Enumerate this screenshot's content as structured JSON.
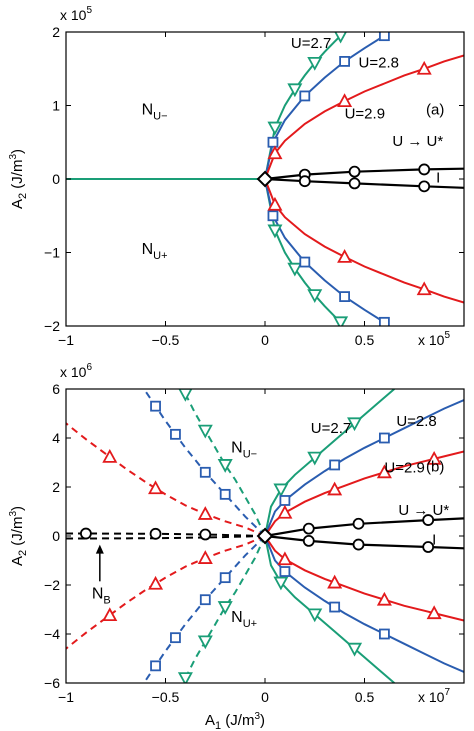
{
  "chart_data": [
    {
      "type": "line",
      "panel_label": "(a)",
      "x_multiplier_label": "x 10",
      "x_multiplier_exp": "5",
      "y_multiplier_label": "x 10",
      "y_multiplier_exp": "5",
      "xlim": [
        -1,
        1
      ],
      "ylim": [
        -2,
        2
      ],
      "xticks": [
        -1,
        -0.5,
        0,
        0.5
      ],
      "xtick_labels": [
        "−1",
        "−0.5",
        "0",
        "0.5"
      ],
      "yticks": [
        -2,
        -1,
        0,
        1,
        2
      ],
      "ytick_labels": [
        "−2",
        "−1",
        "0",
        "1",
        "2"
      ],
      "ylabel": "A",
      "ylabel_sub": "2",
      "ylabel_unit": " (J/m",
      "ylabel_unit_sup": "3",
      "ylabel_close": ")",
      "colors": {
        "green": "#1a9e77",
        "blue": "#2a5db0",
        "red": "#e31a1c",
        "black": "#000000"
      },
      "region_labels": [
        {
          "text": "N",
          "sub": "U−",
          "x": -0.62,
          "y": 0.88
        },
        {
          "text": "N",
          "sub": "U+",
          "x": -0.62,
          "y": -1.02
        }
      ],
      "series_labels": [
        {
          "text": "U=2.7",
          "x": 0.13,
          "y": 1.78
        },
        {
          "text": "U=2.8",
          "x": 0.47,
          "y": 1.52
        },
        {
          "text": "U=2.9",
          "x": 0.4,
          "y": 0.82
        },
        {
          "text": "U → U*",
          "x": 0.64,
          "y": 0.45
        },
        {
          "text": "I",
          "x": 0.86,
          "y": -0.05
        }
      ],
      "series": [
        {
          "color": "green",
          "marker": "tri-down",
          "dashed": false,
          "x": [
            0,
            0.05,
            0.1,
            0.15,
            0.2,
            0.25,
            0.3,
            0.35,
            0.38
          ],
          "y": [
            0,
            0.7,
            1.0,
            1.22,
            1.41,
            1.58,
            1.73,
            1.87,
            1.95
          ],
          "marker_x": [
            0.05,
            0.15,
            0.25,
            0.38
          ]
        },
        {
          "color": "green",
          "marker": "tri-down",
          "dashed": false,
          "x": [
            0,
            0.05,
            0.1,
            0.15,
            0.2,
            0.25,
            0.3,
            0.35,
            0.38
          ],
          "y": [
            0,
            -0.7,
            -1.0,
            -1.22,
            -1.41,
            -1.58,
            -1.73,
            -1.87,
            -1.95
          ],
          "marker_x": [
            0.05,
            0.15,
            0.25,
            0.38
          ]
        },
        {
          "color": "blue",
          "marker": "square",
          "dashed": false,
          "x": [
            0,
            0.04,
            0.1,
            0.2,
            0.3,
            0.4,
            0.5,
            0.6
          ],
          "y": [
            0,
            0.5,
            0.8,
            1.13,
            1.38,
            1.6,
            1.78,
            1.95
          ],
          "marker_x": [
            0.04,
            0.2,
            0.4,
            0.6
          ]
        },
        {
          "color": "blue",
          "marker": "square",
          "dashed": false,
          "x": [
            0,
            0.04,
            0.1,
            0.2,
            0.3,
            0.4,
            0.5,
            0.6
          ],
          "y": [
            0,
            -0.5,
            -0.8,
            -1.13,
            -1.38,
            -1.6,
            -1.78,
            -1.95
          ],
          "marker_x": [
            0.04,
            0.2,
            0.4,
            0.6
          ]
        },
        {
          "color": "red",
          "marker": "tri-up",
          "dashed": false,
          "x": [
            0,
            0.05,
            0.1,
            0.2,
            0.3,
            0.4,
            0.5,
            0.6,
            0.7,
            0.8,
            0.9,
            1.0
          ],
          "y": [
            0,
            0.35,
            0.52,
            0.75,
            0.92,
            1.06,
            1.19,
            1.3,
            1.41,
            1.5,
            1.6,
            1.68
          ],
          "marker_x": [
            0.05,
            0.4,
            0.8
          ]
        },
        {
          "color": "red",
          "marker": "tri-up",
          "dashed": false,
          "x": [
            0,
            0.05,
            0.1,
            0.2,
            0.3,
            0.4,
            0.5,
            0.6,
            0.7,
            0.8,
            0.9,
            1.0
          ],
          "y": [
            0,
            -0.35,
            -0.52,
            -0.75,
            -0.92,
            -1.06,
            -1.19,
            -1.3,
            -1.41,
            -1.5,
            -1.6,
            -1.68
          ],
          "marker_x": [
            0.05,
            0.4,
            0.8
          ]
        },
        {
          "color": "black",
          "marker": "circle",
          "dashed": false,
          "x": [
            0,
            0.2,
            0.45,
            0.8,
            1.0
          ],
          "y": [
            0,
            0.06,
            0.1,
            0.13,
            0.14
          ],
          "marker_x": [
            0.2,
            0.45,
            0.8
          ]
        },
        {
          "color": "black",
          "marker": "circle",
          "dashed": false,
          "x": [
            0,
            0.2,
            0.45,
            0.8,
            1.0
          ],
          "y": [
            0,
            -0.03,
            -0.06,
            -0.1,
            -0.12
          ],
          "marker_x": [
            0.2,
            0.45,
            0.8
          ]
        },
        {
          "color": "green",
          "marker": "none",
          "dashed": false,
          "x": [
            -1,
            0
          ],
          "y": [
            0,
            0
          ],
          "marker_x": []
        }
      ],
      "origin_marker": "diamond"
    },
    {
      "type": "line",
      "panel_label": "(b)",
      "x_multiplier_label": "x 10",
      "x_multiplier_exp": "7",
      "y_multiplier_label": "x 10",
      "y_multiplier_exp": "6",
      "xlim": [
        -1,
        1
      ],
      "ylim": [
        -6,
        6
      ],
      "xticks": [
        -1,
        -0.5,
        0,
        0.5
      ],
      "xtick_labels": [
        "−1",
        "−0.5",
        "0",
        "0.5"
      ],
      "yticks": [
        -6,
        -4,
        -2,
        0,
        2,
        4,
        6
      ],
      "ytick_labels": [
        "−6",
        "−4",
        "−2",
        "0",
        "2",
        "4",
        "6"
      ],
      "xlabel": "A",
      "xlabel_sub": "1",
      "xlabel_unit": " (J/m",
      "xlabel_unit_sup": "3",
      "xlabel_close": ")",
      "ylabel": "A",
      "ylabel_sub": "2",
      "ylabel_unit": " (J/m",
      "ylabel_unit_sup": "3",
      "ylabel_close": ")",
      "colors": {
        "green": "#1a9e77",
        "blue": "#2a5db0",
        "red": "#e31a1c",
        "black": "#000000"
      },
      "region_labels": [
        {
          "text": "N",
          "sub": "U−",
          "x": -0.17,
          "y": 3.4
        },
        {
          "text": "N",
          "sub": "U+",
          "x": -0.17,
          "y": -3.5
        }
      ],
      "nb_label": {
        "text": "N",
        "sub": "B",
        "x": -0.87,
        "y": -2.55,
        "arrow_from": -1.85,
        "arrow_to": -0.35,
        "arrow_x": -0.83
      },
      "series_labels": [
        {
          "text": "U=2.7",
          "x": 0.23,
          "y": 4.2
        },
        {
          "text": "U=2.8",
          "x": 0.66,
          "y": 4.5
        },
        {
          "text": "U=2.9",
          "x": 0.6,
          "y": 2.6
        },
        {
          "text": "U → U*",
          "x": 0.67,
          "y": 0.85
        },
        {
          "text": "I",
          "x": 0.84,
          "y": -0.35
        }
      ],
      "series": [
        {
          "color": "green",
          "marker": "tri-down",
          "dashed": false,
          "x": [
            0,
            0.03,
            0.08,
            0.15,
            0.25,
            0.35,
            0.45,
            0.55,
            0.65
          ],
          "y": [
            0,
            1.2,
            1.9,
            2.5,
            3.2,
            3.9,
            4.6,
            5.3,
            6.0
          ],
          "marker_x": [
            0.08,
            0.25,
            0.45
          ]
        },
        {
          "color": "green",
          "marker": "tri-down",
          "dashed": false,
          "x": [
            0,
            0.03,
            0.08,
            0.15,
            0.25,
            0.35,
            0.45,
            0.55,
            0.65
          ],
          "y": [
            0,
            -1.2,
            -1.9,
            -2.5,
            -3.2,
            -3.9,
            -4.6,
            -5.3,
            -6.0
          ],
          "marker_x": [
            0.08,
            0.25,
            0.45
          ]
        },
        {
          "color": "blue",
          "marker": "square",
          "dashed": false,
          "x": [
            0,
            0.05,
            0.1,
            0.2,
            0.3,
            0.4,
            0.5,
            0.6,
            0.7,
            0.8,
            0.9,
            1.0
          ],
          "y": [
            0,
            1.0,
            1.45,
            2.1,
            2.65,
            3.15,
            3.6,
            4.0,
            4.4,
            4.8,
            5.2,
            5.55
          ],
          "marker_x": [
            0.1,
            0.35,
            0.6
          ]
        },
        {
          "color": "blue",
          "marker": "square",
          "dashed": false,
          "x": [
            0,
            0.05,
            0.1,
            0.2,
            0.3,
            0.4,
            0.5,
            0.6,
            0.7,
            0.8,
            0.9,
            1.0
          ],
          "y": [
            0,
            -1.0,
            -1.45,
            -2.1,
            -2.65,
            -3.15,
            -3.6,
            -4.0,
            -4.4,
            -4.8,
            -5.2,
            -5.55
          ],
          "marker_x": [
            0.1,
            0.35,
            0.6
          ]
        },
        {
          "color": "red",
          "marker": "tri-up",
          "dashed": false,
          "x": [
            0,
            0.05,
            0.1,
            0.2,
            0.3,
            0.4,
            0.5,
            0.6,
            0.7,
            0.8,
            0.9,
            1.0
          ],
          "y": [
            0,
            0.6,
            0.95,
            1.4,
            1.75,
            2.05,
            2.35,
            2.6,
            2.85,
            3.05,
            3.25,
            3.45
          ],
          "marker_x": [
            0.1,
            0.35,
            0.6,
            0.85
          ]
        },
        {
          "color": "red",
          "marker": "tri-up",
          "dashed": false,
          "x": [
            0,
            0.05,
            0.1,
            0.2,
            0.3,
            0.4,
            0.5,
            0.6,
            0.7,
            0.8,
            0.9,
            1.0
          ],
          "y": [
            0,
            -0.6,
            -0.95,
            -1.4,
            -1.75,
            -2.05,
            -2.35,
            -2.6,
            -2.85,
            -3.05,
            -3.25,
            -3.45
          ],
          "marker_x": [
            0.1,
            0.35,
            0.6,
            0.85
          ]
        },
        {
          "color": "black",
          "marker": "circle",
          "dashed": false,
          "x": [
            0,
            0.22,
            0.47,
            0.82,
            1.0
          ],
          "y": [
            0,
            0.3,
            0.5,
            0.65,
            0.72
          ],
          "marker_x": [
            0.22,
            0.47,
            0.82
          ]
        },
        {
          "color": "black",
          "marker": "circle",
          "dashed": false,
          "x": [
            0,
            0.22,
            0.47,
            0.82,
            1.0
          ],
          "y": [
            0,
            -0.2,
            -0.35,
            -0.45,
            -0.5
          ],
          "marker_x": [
            0.22,
            0.47,
            0.82
          ]
        },
        {
          "color": "green",
          "marker": "tri-down",
          "dashed": true,
          "x": [
            0,
            -0.05,
            -0.1,
            -0.15,
            -0.2,
            -0.25,
            -0.3,
            -0.35,
            -0.4
          ],
          "y": [
            0,
            0.9,
            1.6,
            2.3,
            2.9,
            3.6,
            4.3,
            5.0,
            5.8
          ],
          "marker_x": [
            -0.2,
            -0.3,
            -0.4
          ]
        },
        {
          "color": "green",
          "marker": "tri-down",
          "dashed": true,
          "x": [
            0,
            -0.05,
            -0.1,
            -0.15,
            -0.2,
            -0.25,
            -0.3,
            -0.35,
            -0.4
          ],
          "y": [
            0,
            -0.9,
            -1.6,
            -2.3,
            -2.9,
            -3.6,
            -4.3,
            -5.0,
            -5.8
          ],
          "marker_x": [
            -0.2,
            -0.3,
            -0.4
          ]
        },
        {
          "color": "blue",
          "marker": "square",
          "dashed": true,
          "x": [
            0,
            -0.1,
            -0.2,
            -0.3,
            -0.4,
            -0.5,
            -0.6
          ],
          "y": [
            0,
            0.8,
            1.7,
            2.6,
            3.6,
            4.7,
            5.9
          ],
          "marker_x": [
            -0.2,
            -0.3,
            -0.45,
            -0.55
          ]
        },
        {
          "color": "blue",
          "marker": "square",
          "dashed": true,
          "x": [
            0,
            -0.1,
            -0.2,
            -0.3,
            -0.4,
            -0.5,
            -0.6
          ],
          "y": [
            0,
            -0.8,
            -1.7,
            -2.6,
            -3.6,
            -4.7,
            -5.9
          ],
          "marker_x": [
            -0.2,
            -0.3,
            -0.45,
            -0.55
          ]
        },
        {
          "color": "red",
          "marker": "tri-up",
          "dashed": true,
          "x": [
            0,
            -0.1,
            -0.2,
            -0.3,
            -0.4,
            -0.5,
            -0.6,
            -0.7,
            -0.8,
            -0.9,
            -1.0
          ],
          "y": [
            0,
            0.35,
            0.6,
            0.9,
            1.25,
            1.7,
            2.2,
            2.75,
            3.35,
            3.95,
            4.6
          ],
          "marker_x": [
            -0.3,
            -0.55,
            -0.78
          ]
        },
        {
          "color": "red",
          "marker": "tri-up",
          "dashed": true,
          "x": [
            0,
            -0.1,
            -0.2,
            -0.3,
            -0.4,
            -0.5,
            -0.6,
            -0.7,
            -0.8,
            -0.9,
            -1.0
          ],
          "y": [
            0,
            -0.35,
            -0.6,
            -0.9,
            -1.25,
            -1.7,
            -2.2,
            -2.75,
            -3.35,
            -3.95,
            -4.6
          ],
          "marker_x": [
            -0.3,
            -0.55,
            -0.78
          ]
        },
        {
          "color": "black",
          "marker": "circle",
          "dashed": true,
          "x": [
            0,
            -0.3,
            -0.55,
            -0.9,
            -1.0
          ],
          "y": [
            0,
            0.06,
            0.09,
            0.1,
            0.1
          ],
          "marker_x": [
            -0.3,
            -0.55,
            -0.9
          ]
        },
        {
          "color": "black",
          "marker": "circle",
          "dashed": true,
          "x": [
            0,
            -0.3,
            -0.55,
            -0.9,
            -1.0
          ],
          "y": [
            0,
            -0.06,
            -0.09,
            -0.1,
            -0.1
          ],
          "marker_x": []
        }
      ],
      "origin_marker": "diamond"
    }
  ]
}
